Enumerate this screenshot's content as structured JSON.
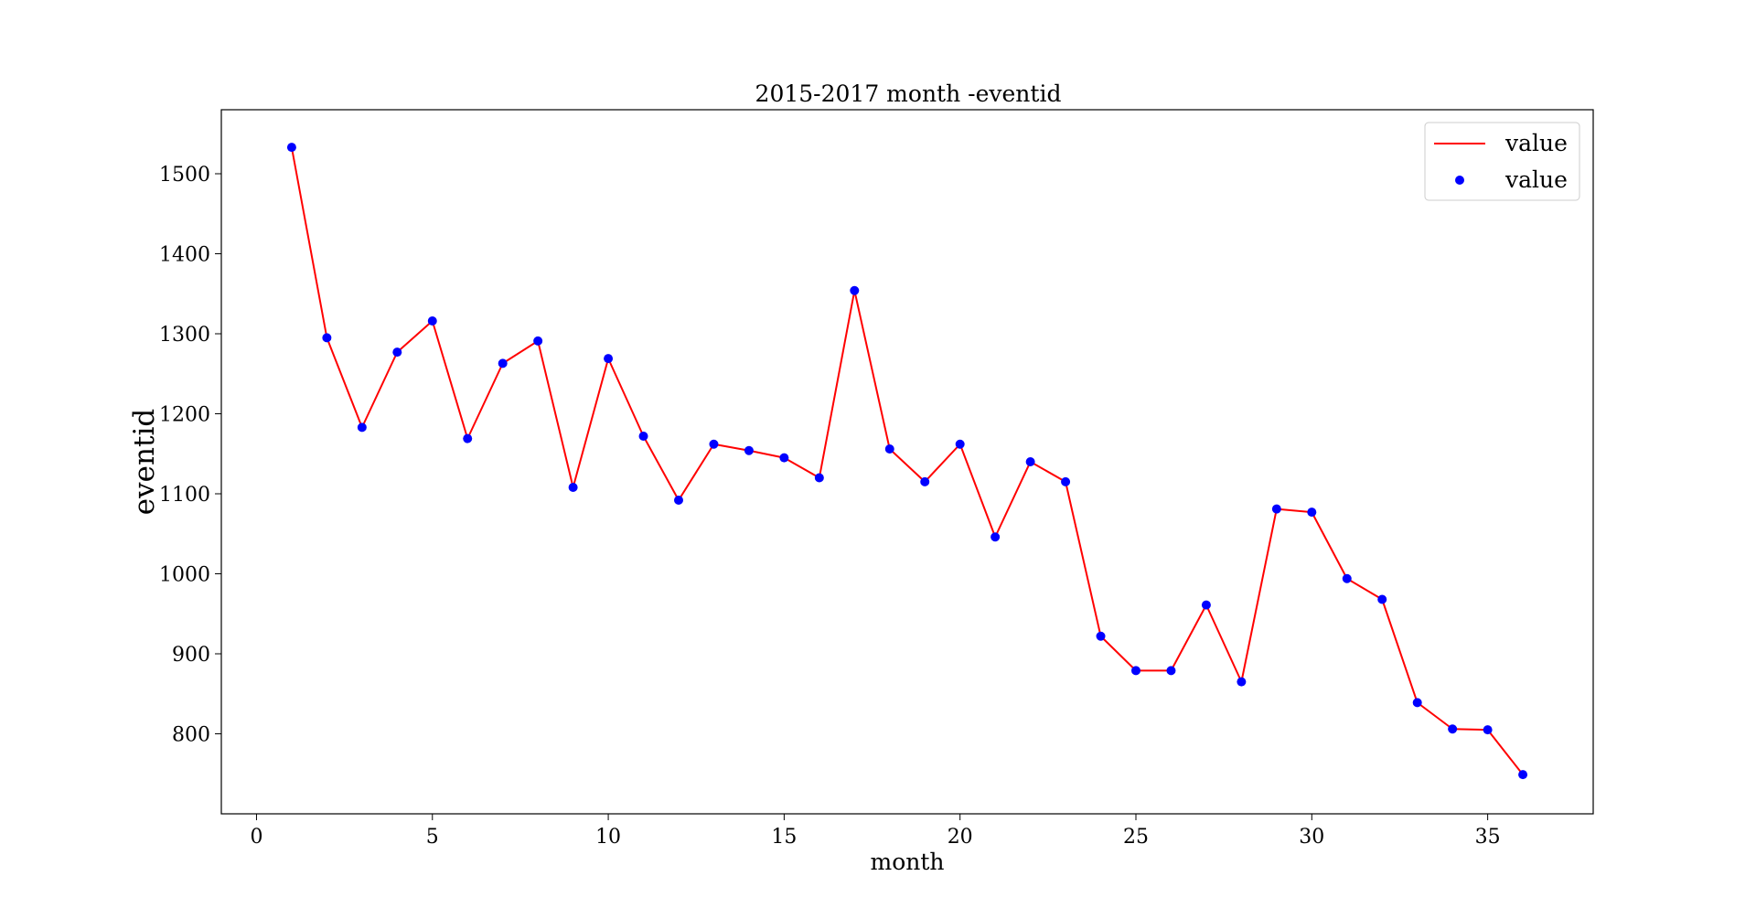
{
  "chart_data": {
    "type": "line",
    "title": "2015-2017 month -eventid",
    "xlabel": "month",
    "ylabel": "eventid",
    "xlim": [
      -1,
      38
    ],
    "ylim": [
      700,
      1580
    ],
    "xticks": [
      0,
      5,
      10,
      15,
      20,
      25,
      30,
      35
    ],
    "yticks": [
      800,
      900,
      1000,
      1100,
      1200,
      1300,
      1400,
      1500
    ],
    "grid": false,
    "legend_position": "top-right",
    "x": [
      1,
      2,
      3,
      4,
      5,
      6,
      7,
      8,
      9,
      10,
      11,
      12,
      13,
      14,
      15,
      16,
      17,
      18,
      19,
      20,
      21,
      22,
      23,
      24,
      25,
      26,
      27,
      28,
      29,
      30,
      31,
      32,
      33,
      34,
      35,
      36
    ],
    "series": [
      {
        "name": "value",
        "style": "line",
        "color": "#ff0000",
        "values": [
          1533,
          1295,
          1183,
          1277,
          1316,
          1169,
          1263,
          1291,
          1108,
          1269,
          1172,
          1092,
          1162,
          1154,
          1145,
          1120,
          1354,
          1156,
          1115,
          1162,
          1046,
          1140,
          1115,
          922,
          879,
          879,
          961,
          865,
          1081,
          1077,
          994,
          968,
          839,
          806,
          805,
          749
        ]
      },
      {
        "name": "value",
        "style": "scatter",
        "color": "#0000ff",
        "values": [
          1533,
          1295,
          1183,
          1277,
          1316,
          1169,
          1263,
          1291,
          1108,
          1269,
          1172,
          1092,
          1162,
          1154,
          1145,
          1120,
          1354,
          1156,
          1115,
          1162,
          1046,
          1140,
          1115,
          922,
          879,
          879,
          961,
          865,
          1081,
          1077,
          994,
          968,
          839,
          806,
          805,
          749
        ]
      }
    ]
  }
}
